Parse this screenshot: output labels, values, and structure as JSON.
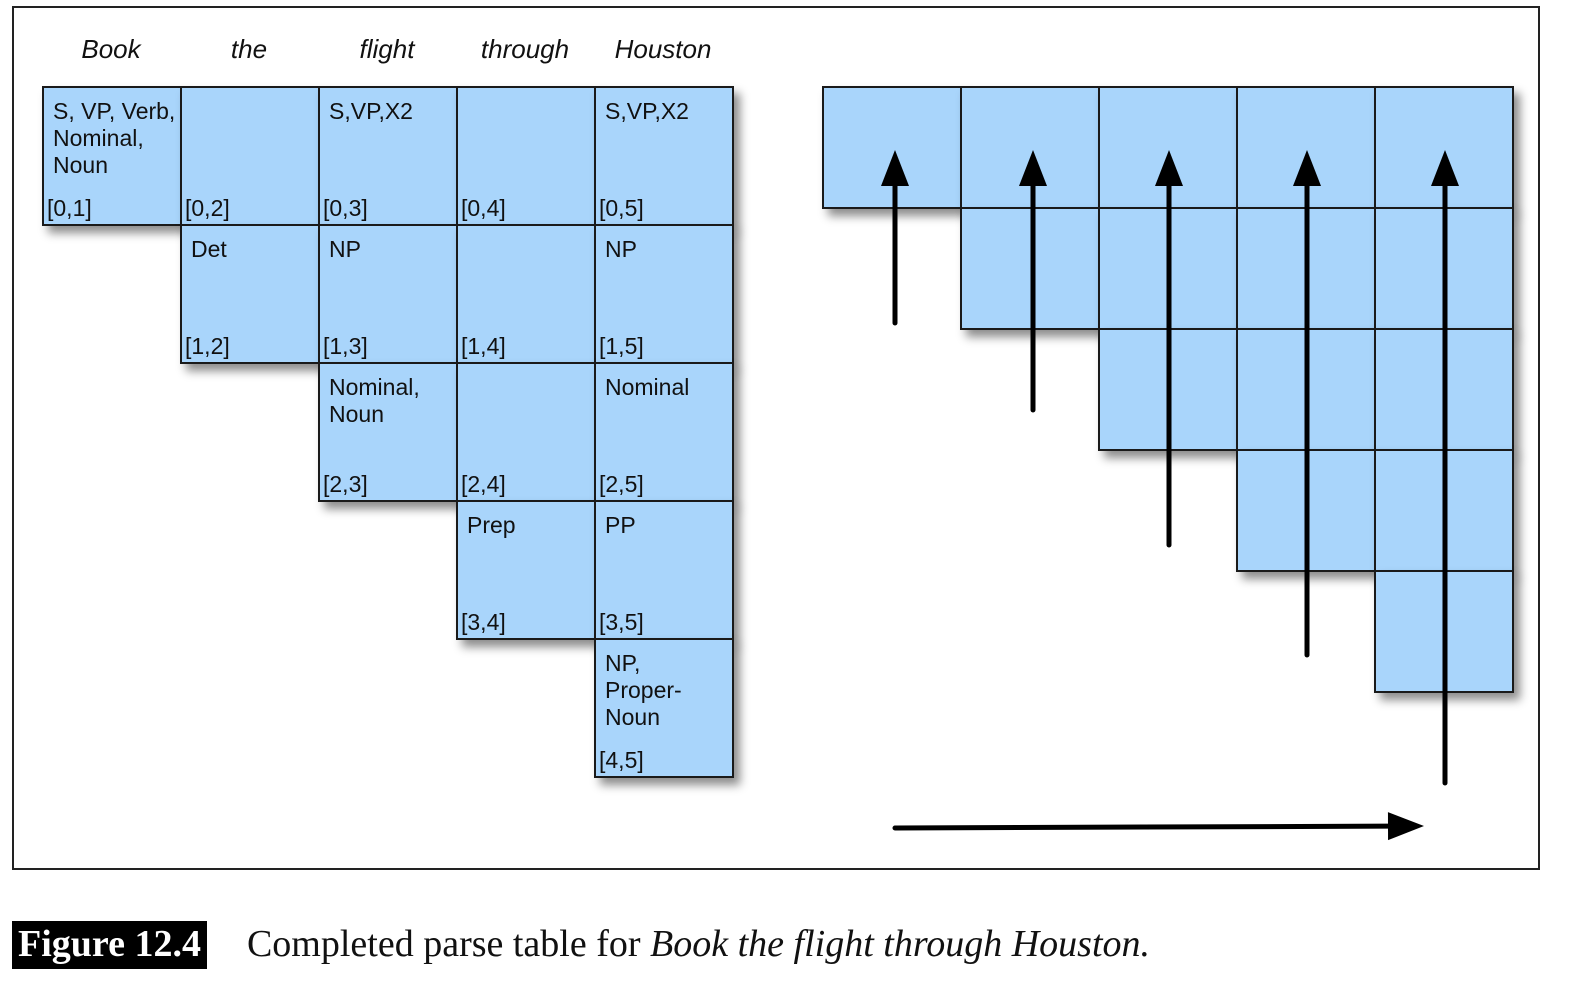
{
  "words": [
    "Book",
    "the",
    "flight",
    "through",
    "Houston"
  ],
  "cells": [
    {
      "row": 0,
      "col": 1,
      "label": "S, VP, Verb,\nNominal,\nNoun",
      "span": "[0,1]"
    },
    {
      "row": 0,
      "col": 2,
      "label": "",
      "span": "[0,2]"
    },
    {
      "row": 0,
      "col": 3,
      "label": "S,VP,X2",
      "span": "[0,3]"
    },
    {
      "row": 0,
      "col": 4,
      "label": "",
      "span": "[0,4]"
    },
    {
      "row": 0,
      "col": 5,
      "label": "S,VP,X2",
      "span": "[0,5]"
    },
    {
      "row": 1,
      "col": 2,
      "label": "Det",
      "span": "[1,2]"
    },
    {
      "row": 1,
      "col": 3,
      "label": "NP",
      "span": "[1,3]"
    },
    {
      "row": 1,
      "col": 4,
      "label": "",
      "span": "[1,4]"
    },
    {
      "row": 1,
      "col": 5,
      "label": "NP",
      "span": "[1,5]"
    },
    {
      "row": 2,
      "col": 3,
      "label": "Nominal,\nNoun",
      "span": "[2,3]"
    },
    {
      "row": 2,
      "col": 4,
      "label": "",
      "span": "[2,4]"
    },
    {
      "row": 2,
      "col": 5,
      "label": "Nominal",
      "span": "[2,5]"
    },
    {
      "row": 3,
      "col": 4,
      "label": "Prep",
      "span": "[3,4]"
    },
    {
      "row": 3,
      "col": 5,
      "label": "PP",
      "span": "[3,5]"
    },
    {
      "row": 4,
      "col": 5,
      "label": "NP,\nProper-\nNoun",
      "span": "[4,5]"
    }
  ],
  "caption": {
    "label": "Figure 12.4",
    "text": "Completed parse table for ",
    "italic": "Book the flight through Houston."
  }
}
